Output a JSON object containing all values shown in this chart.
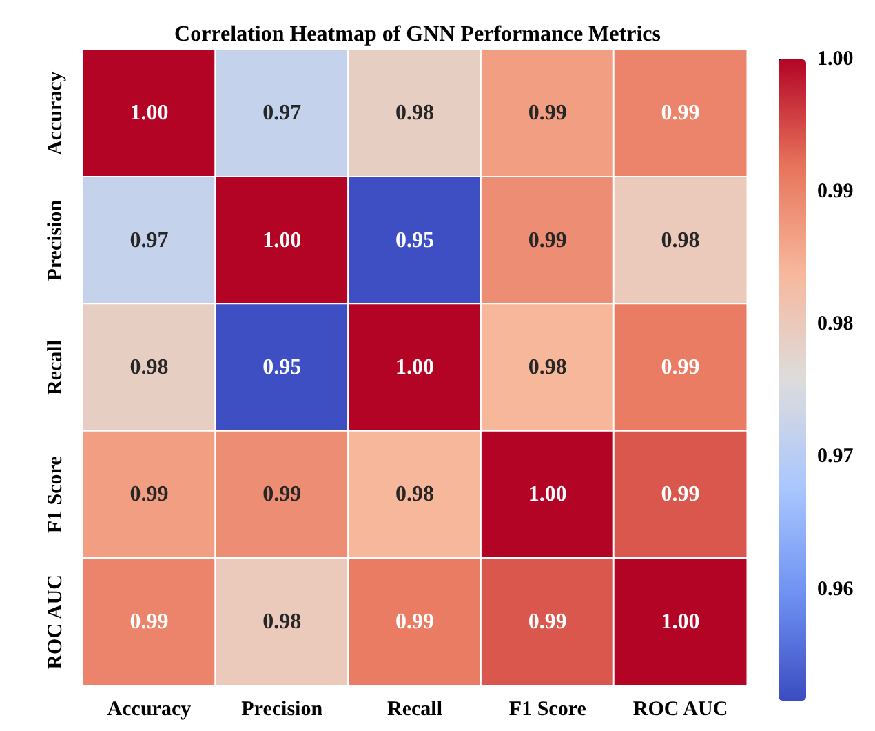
{
  "chart_data": {
    "type": "heatmap",
    "title": "Correlation Heatmap of GNN Performance Metrics",
    "categories": [
      "Accuracy",
      "Precision",
      "Recall",
      "F1 Score",
      "ROC AUC"
    ],
    "y_categories": [
      "Accuracy",
      "Precision",
      "Recall",
      "F1 Score",
      "ROC AUC"
    ],
    "cells": [
      [
        1.0,
        0.972,
        0.979,
        0.987,
        0.99
      ],
      [
        0.972,
        1.0,
        0.952,
        0.989,
        0.98
      ],
      [
        0.979,
        0.952,
        1.0,
        0.984,
        0.991
      ],
      [
        0.987,
        0.989,
        0.984,
        1.0,
        0.994
      ],
      [
        0.99,
        0.98,
        0.991,
        0.994,
        1.0
      ]
    ],
    "cell_labels": [
      [
        "1.00",
        "0.97",
        "0.98",
        "0.99",
        "0.99"
      ],
      [
        "0.97",
        "1.00",
        "0.95",
        "0.99",
        "0.98"
      ],
      [
        "0.98",
        "0.95",
        "1.00",
        "0.98",
        "0.99"
      ],
      [
        "0.99",
        "0.99",
        "0.98",
        "1.00",
        "0.99"
      ],
      [
        "0.99",
        "0.98",
        "0.99",
        "0.99",
        "1.00"
      ]
    ],
    "clim": [
      0.9516,
      1.0
    ],
    "cticks": [
      {
        "value": 0.96,
        "label": "0.96"
      },
      {
        "value": 0.97,
        "label": "0.97"
      },
      {
        "value": 0.98,
        "label": "0.98"
      },
      {
        "value": 0.99,
        "label": "0.99"
      },
      {
        "value": 1.0,
        "label": "1.00"
      }
    ]
  }
}
